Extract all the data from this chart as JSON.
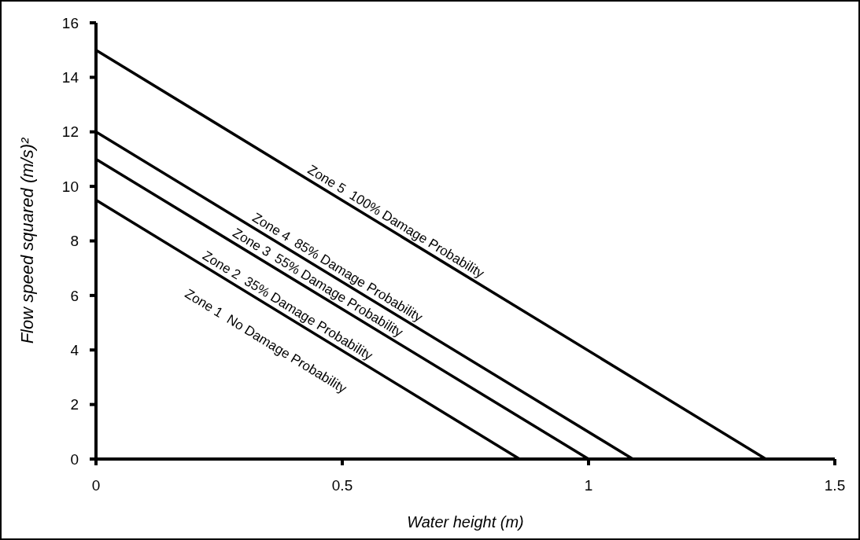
{
  "chart_data": {
    "type": "line",
    "xlabel": "Water height (m)",
    "ylabel": "Flow speed squared (m/s)²",
    "xlim": [
      0,
      1.5
    ],
    "xticks": [
      0,
      0.5,
      1,
      1.5
    ],
    "ylim": [
      0,
      16
    ],
    "yticks": [
      0,
      2,
      4,
      6,
      8,
      10,
      12,
      14,
      16
    ],
    "grid": false,
    "legend": false,
    "marker": "none",
    "line_style": "solid",
    "series": [
      {
        "color": "#000000",
        "x": [
          0,
          0.86
        ],
        "values": [
          9.5,
          0
        ]
      },
      {
        "color": "#000000",
        "x": [
          0,
          1.0
        ],
        "values": [
          11,
          0
        ]
      },
      {
        "color": "#000000",
        "x": [
          0,
          1.09
        ],
        "values": [
          12,
          0
        ]
      },
      {
        "color": "#000000",
        "x": [
          0,
          1.36
        ],
        "values": [
          15,
          0
        ]
      }
    ],
    "annotations": [
      "Zone 1  No Damage Probability",
      "Zone 2  35% Damage Probability",
      "Zone 3  55% Damage Probability",
      "Zone 4  85% Damage Probability",
      "Zone 5  100% Damage Probability"
    ]
  }
}
